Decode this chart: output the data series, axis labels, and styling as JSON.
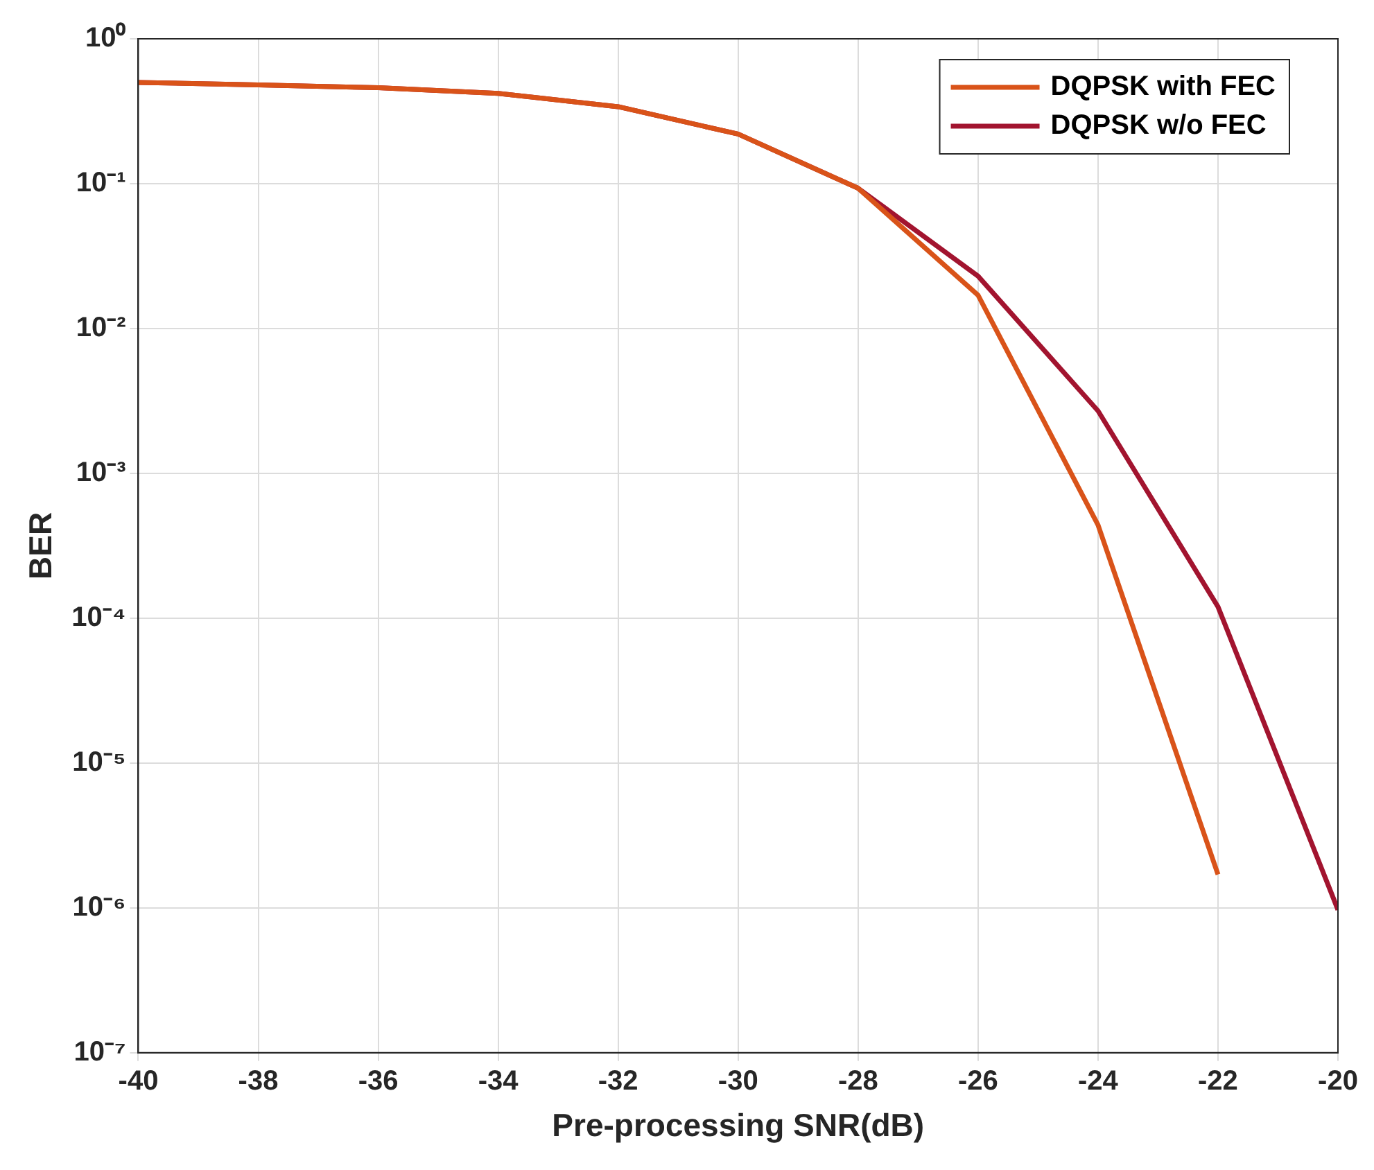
{
  "chart_data": {
    "type": "line",
    "xlabel": "Pre-processing SNR(dB)",
    "ylabel": "BER",
    "x": [
      -40,
      -38,
      -36,
      -34,
      -32,
      -30,
      -28,
      -26,
      -24,
      -22,
      -20
    ],
    "series": [
      {
        "name": "DQPSK with FEC",
        "color": "#d95319",
        "values": [
          0.5,
          0.48,
          0.46,
          0.42,
          0.34,
          0.22,
          0.093,
          0.017,
          0.00044,
          1.7e-06,
          null
        ]
      },
      {
        "name": "DQPSK w/o FEC",
        "color": "#a2142f",
        "values": [
          0.5,
          0.48,
          0.46,
          0.42,
          0.34,
          0.22,
          0.093,
          0.023,
          0.0027,
          0.00012,
          9.7e-07
        ]
      }
    ],
    "log": "y",
    "xlim": [
      -40,
      -20
    ],
    "xticks": [
      -40,
      -38,
      -36,
      -34,
      -32,
      -30,
      -28,
      -26,
      -24,
      -22,
      -20
    ],
    "ylim": [
      1e-07,
      1
    ],
    "yticks": [
      {
        "value": 1e-07,
        "label": "10⁻⁷"
      },
      {
        "value": 1e-06,
        "label": "10⁻⁶"
      },
      {
        "value": 1e-05,
        "label": "10⁻⁵"
      },
      {
        "value": 0.0001,
        "label": "10⁻⁴"
      },
      {
        "value": 0.001,
        "label": "10⁻³"
      },
      {
        "value": 0.01,
        "label": "10⁻²"
      },
      {
        "value": 0.1,
        "label": "10⁻¹"
      },
      {
        "value": 1,
        "label": "10⁰"
      }
    ],
    "grid": true,
    "legend": "top right",
    "marker": "none",
    "line_style": "solid"
  }
}
